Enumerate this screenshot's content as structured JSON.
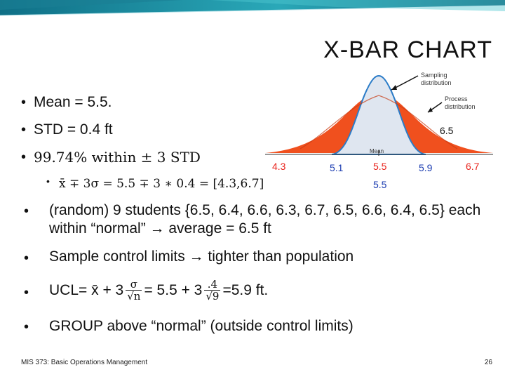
{
  "slide": {
    "title": "X-BAR CHART",
    "footer_left": "MIS 373: Basic Operations Management",
    "page_number": "26"
  },
  "bullets": {
    "mean": "Mean = 5.5.",
    "std": "STD = 0.4 ft",
    "pct": "99.74%  within ± 3 STD",
    "sub_formula": "x̄ ∓ 3σ = 5.5 ∓ 3 ∗ 0.4 = [4.3,6.7]",
    "random_line1": "(random) 9 students {6.5, 6.4, 6.6, 6.3, 6.7, 6.5, 6.6, 6.4, 6.5} each",
    "random_line2": "within “normal” → average = 6.5 ft",
    "sample": "Sample control limits → tighter than population",
    "ucl_prefix": "UCL= x̄ + 3",
    "ucl_mid": "= 5.5 + 3",
    "ucl_suffix": "=5.9 ft.",
    "ucl_frac1_num": "σ",
    "ucl_frac1_den": "√n",
    "ucl_frac2_num": ".4",
    "ucl_frac2_den": "√9",
    "group": "GROUP above “normal”  (outside control limits)"
  },
  "figure": {
    "sampling_label_1": "Sampling",
    "sampling_label_2": "distribution",
    "process_label_1": "Process",
    "process_label_2": "distribution",
    "mean_label": "Mean"
  },
  "annotations": {
    "a_65": "6.5",
    "a_43": "4.3",
    "a_51": "5.1",
    "a_55_top": "5.5",
    "a_59": "5.9",
    "a_67": "6.7",
    "a_55_bottom": "5.5"
  },
  "colors": {
    "process_fill": "#f0501e",
    "sampling_fill": "#dfe6f0",
    "sampling_line": "#2b7cc8",
    "banner_teal": "#2aa8b8"
  }
}
